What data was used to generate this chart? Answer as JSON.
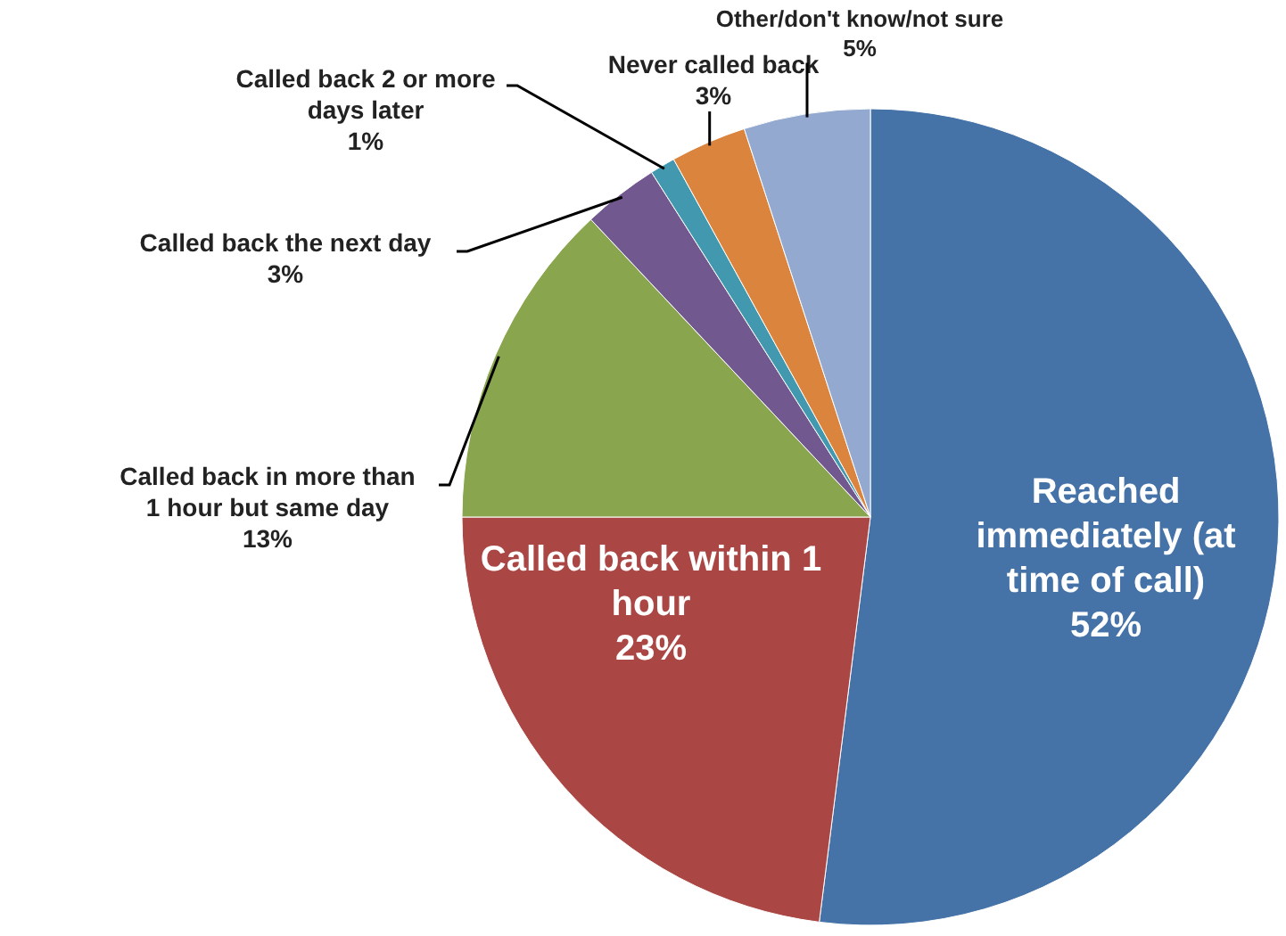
{
  "chart_data": {
    "type": "pie",
    "categories": [
      "Reached immediately (at time of call)",
      "Called back within 1 hour",
      "Called back in more than 1 hour but same day",
      "Called back the next day",
      "Called back 2 or more days later",
      "Never called back",
      "Other/don't know/not sure"
    ],
    "values": [
      52,
      23,
      13,
      3,
      1,
      3,
      5
    ],
    "colors": [
      "#4572a7",
      "#aa4643",
      "#89a54e",
      "#71588f",
      "#4198af",
      "#db843d",
      "#93a9cf"
    ],
    "value_labels": [
      "52%",
      "23%",
      "13%",
      "3%",
      "1%",
      "3%",
      "5%"
    ]
  }
}
